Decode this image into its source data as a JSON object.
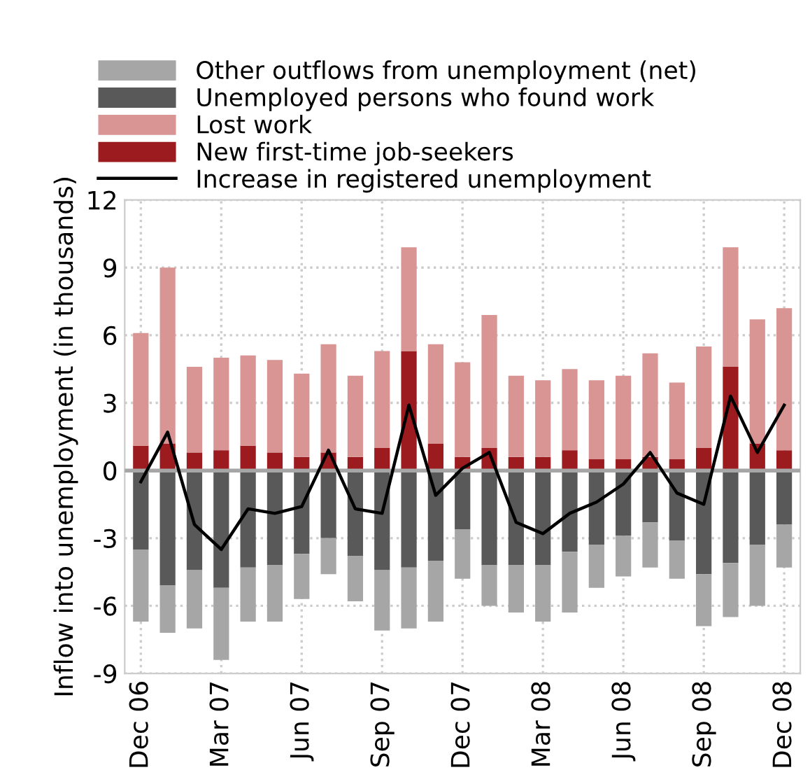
{
  "chart_data": {
    "type": "bar",
    "stacked": true,
    "ylabel": "Inflow into unemployment (in thousands)",
    "categories": [
      "Dec 06",
      null,
      null,
      "Mar 07",
      null,
      null,
      "Jun 07",
      null,
      null,
      "Sep 07",
      null,
      null,
      "Dec 07",
      null,
      null,
      "Mar 08",
      null,
      null,
      "Jun 08",
      null,
      null,
      "Sep 08",
      null,
      null,
      "Dec 08"
    ],
    "series": [
      {
        "name": "New first-time job-seekers",
        "color": "#9b1b1f",
        "values": [
          1.1,
          1.2,
          0.8,
          0.9,
          1.1,
          0.8,
          0.6,
          0.8,
          0.6,
          1.0,
          5.3,
          1.2,
          0.6,
          1.0,
          0.6,
          0.6,
          0.9,
          0.5,
          0.5,
          0.6,
          0.5,
          1.0,
          4.6,
          1.2,
          0.9
        ]
      },
      {
        "name": "Lost work",
        "color": "#d99594",
        "values": [
          5.0,
          7.8,
          3.8,
          4.1,
          4.0,
          4.1,
          3.7,
          4.8,
          3.6,
          4.3,
          4.6,
          4.4,
          4.2,
          5.9,
          3.6,
          3.4,
          3.6,
          3.5,
          3.7,
          4.6,
          3.4,
          4.5,
          5.3,
          5.5,
          6.3
        ]
      },
      {
        "name": "Unemployed persons who found work",
        "color": "#595959",
        "values": [
          -3.5,
          -5.1,
          -4.4,
          -5.2,
          -4.3,
          -4.2,
          -3.7,
          -3.0,
          -3.8,
          -4.4,
          -4.3,
          -4.0,
          -2.6,
          -4.2,
          -4.2,
          -4.2,
          -3.6,
          -3.3,
          -2.9,
          -2.3,
          -3.1,
          -4.6,
          -4.1,
          -3.3,
          -2.4
        ]
      },
      {
        "name": "Other outflows from unemployment (net)",
        "color": "#a6a6a6",
        "values": [
          -3.2,
          -2.1,
          -2.6,
          -3.2,
          -2.4,
          -2.5,
          -2.0,
          -1.6,
          -2.0,
          -2.7,
          -2.7,
          -2.7,
          -2.2,
          -1.8,
          -2.1,
          -2.5,
          -2.7,
          -1.9,
          -1.8,
          -2.0,
          -1.7,
          -2.3,
          -2.4,
          -2.7,
          -1.9
        ]
      },
      {
        "name": "Increase in registered unemployment",
        "type": "line",
        "color": "#000000",
        "values": [
          -0.5,
          1.7,
          -2.4,
          -3.5,
          -1.7,
          -1.9,
          -1.6,
          0.9,
          -1.7,
          -1.9,
          2.9,
          -1.1,
          0.1,
          0.8,
          -2.3,
          -2.8,
          -1.9,
          -1.4,
          -0.6,
          0.8,
          -1.0,
          -1.5,
          3.3,
          0.8,
          2.9
        ]
      }
    ],
    "ylim": [
      -9,
      12
    ],
    "yticks": [
      -9,
      -6,
      -3,
      0,
      3,
      6,
      9,
      12
    ],
    "ref_lines": [
      {
        "axis": "y",
        "value": 0,
        "color": "#a6a6a6"
      }
    ],
    "grid": true,
    "legend": "top"
  }
}
